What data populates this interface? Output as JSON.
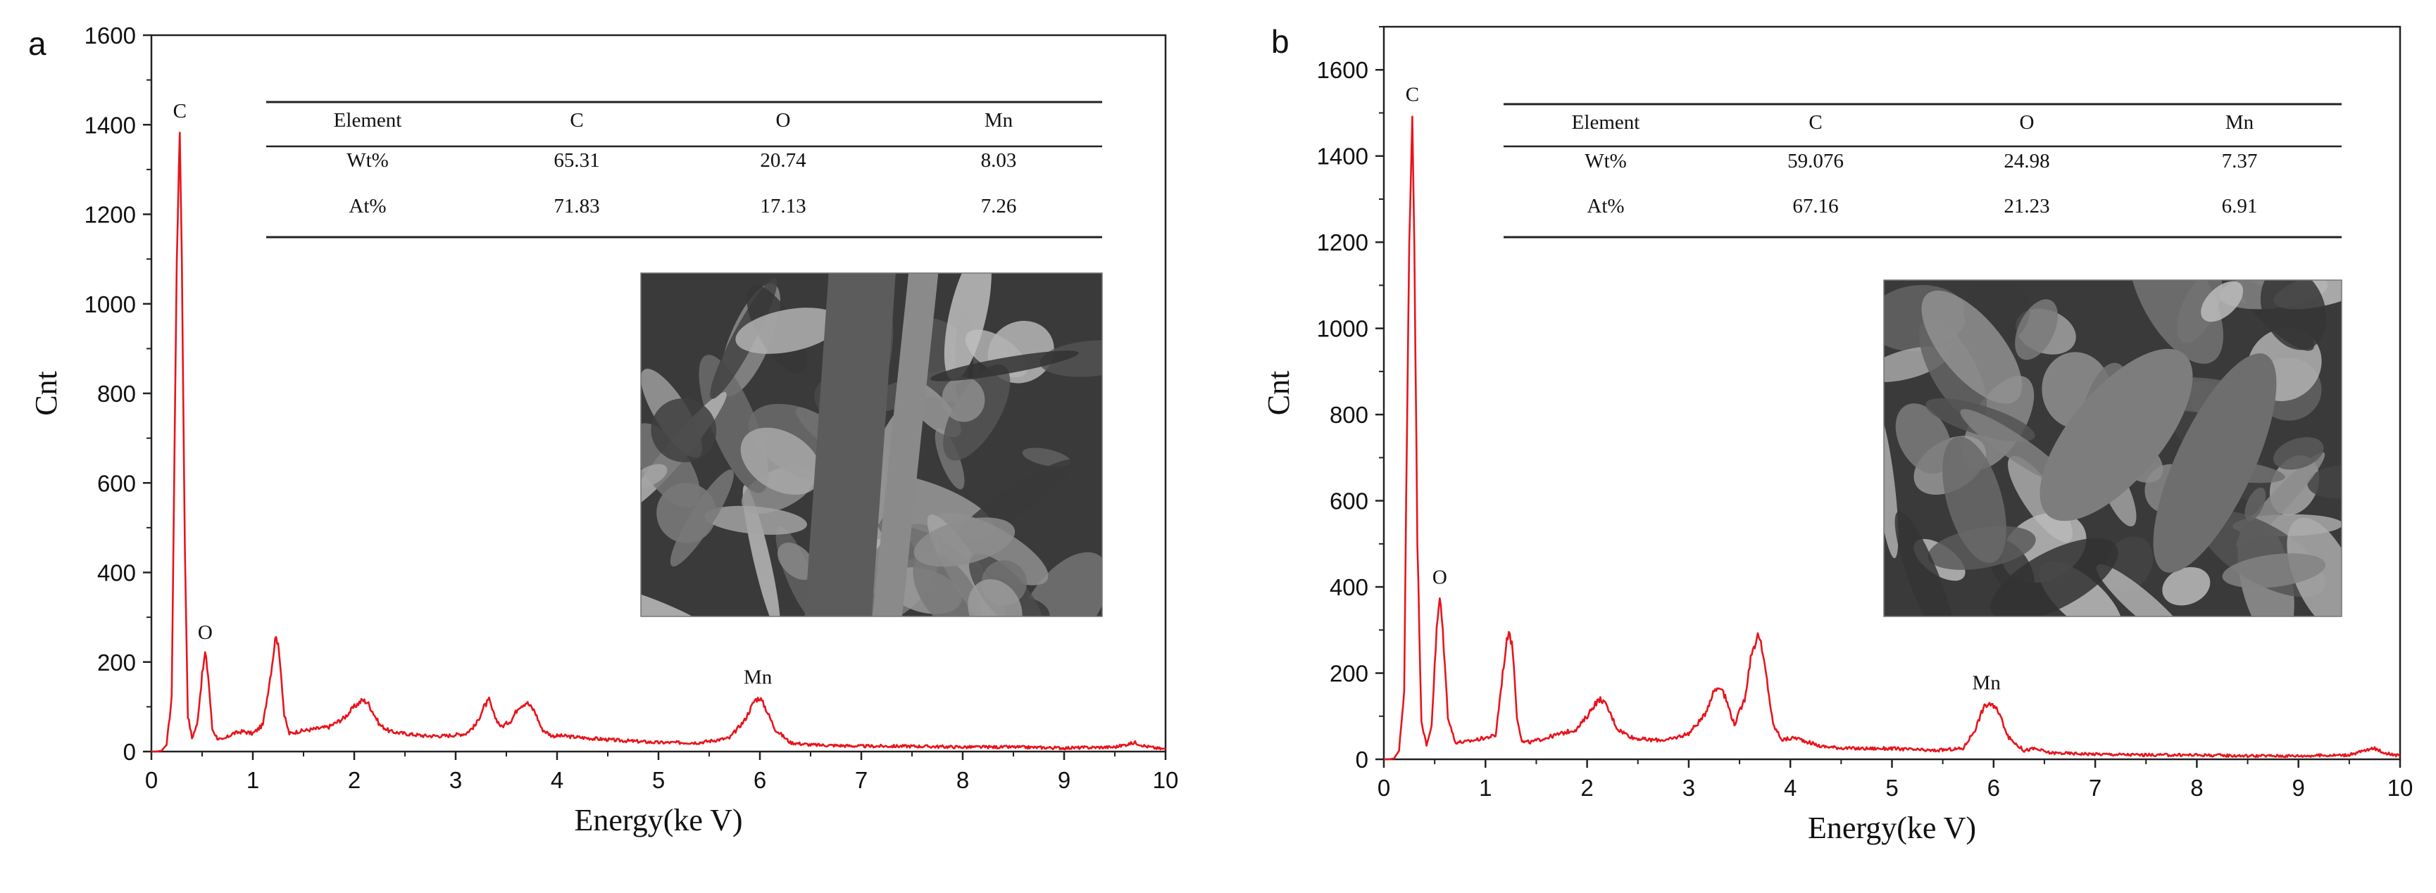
{
  "chart_data": [
    {
      "panel": "a",
      "type": "line",
      "xlabel": "Energy(ke V)",
      "ylabel": "Cnt",
      "xlim": [
        0,
        10
      ],
      "ylim": [
        0,
        1600
      ],
      "xticks": [
        "0",
        "1",
        "2",
        "3",
        "4",
        "5",
        "6",
        "7",
        "8",
        "9",
        "10"
      ],
      "yticks": [
        "0",
        "200",
        "400",
        "600",
        "800",
        "1000",
        "1200",
        "1400",
        "1600"
      ],
      "line_color": "#e8141c",
      "series": [
        {
          "x": [
            0.0,
            0.05,
            0.1,
            0.15,
            0.2,
            0.22,
            0.25,
            0.28,
            0.3,
            0.33,
            0.36,
            0.4,
            0.45,
            0.5,
            0.53,
            0.56,
            0.6,
            0.65,
            0.7,
            0.8,
            0.9,
            1.0,
            1.1,
            1.18,
            1.23,
            1.27,
            1.31,
            1.36,
            1.45,
            1.6,
            1.75,
            1.9,
            2.0,
            2.08,
            2.13,
            2.18,
            2.25,
            2.35,
            2.5,
            2.7,
            2.9,
            3.1,
            3.2,
            3.28,
            3.33,
            3.38,
            3.45,
            3.55,
            3.62,
            3.7,
            3.78,
            3.85,
            3.95,
            4.05,
            4.3,
            4.6,
            5.0,
            5.4,
            5.7,
            5.85,
            5.95,
            6.0,
            6.05,
            6.15,
            6.3,
            6.5,
            7.0,
            7.5,
            8.0,
            8.5,
            9.0,
            9.5,
            9.6,
            9.7,
            9.8,
            9.9,
            10.0
          ],
          "y": [
            0,
            0,
            2,
            15,
            120,
            520,
            1100,
            1385,
            1100,
            450,
            80,
            30,
            60,
            170,
            220,
            170,
            50,
            30,
            25,
            40,
            45,
            40,
            60,
            180,
            265,
            200,
            80,
            40,
            45,
            50,
            55,
            75,
            100,
            115,
            110,
            90,
            60,
            45,
            40,
            35,
            35,
            40,
            60,
            100,
            115,
            80,
            55,
            70,
            100,
            110,
            90,
            50,
            35,
            35,
            30,
            25,
            20,
            20,
            30,
            70,
            115,
            120,
            100,
            50,
            20,
            15,
            12,
            12,
            10,
            10,
            8,
            10,
            15,
            20,
            12,
            8,
            5
          ]
        }
      ],
      "peak_labels": [
        {
          "text": "C",
          "x": 0.28,
          "y": 1385
        },
        {
          "text": "O",
          "x": 0.53,
          "y": 220
        },
        {
          "text": "Mn",
          "x": 5.98,
          "y": 120
        }
      ],
      "table": {
        "headers": [
          "Element",
          "C",
          "O",
          "Mn"
        ],
        "rows": [
          [
            "Wt%",
            "65.31",
            "20.74",
            "8.03"
          ],
          [
            "At%",
            "71.83",
            "17.13",
            "7.26"
          ]
        ]
      },
      "inset": {
        "kind": "sem-micrograph",
        "tone": "grey"
      }
    },
    {
      "panel": "b",
      "type": "line",
      "xlabel": "Energy(ke V)",
      "ylabel": "Cnt",
      "xlim": [
        0,
        10
      ],
      "ylim": [
        0,
        1700
      ],
      "xticks": [
        "0",
        "1",
        "2",
        "3",
        "4",
        "5",
        "6",
        "7",
        "8",
        "9",
        "10"
      ],
      "yticks": [
        "0",
        "200",
        "400",
        "600",
        "800",
        "1000",
        "1200",
        "1400",
        "1600"
      ],
      "line_color": "#e8141c",
      "series": [
        {
          "x": [
            0.0,
            0.05,
            0.1,
            0.15,
            0.2,
            0.22,
            0.25,
            0.28,
            0.3,
            0.33,
            0.37,
            0.42,
            0.47,
            0.52,
            0.55,
            0.58,
            0.63,
            0.7,
            0.8,
            0.9,
            1.0,
            1.1,
            1.18,
            1.23,
            1.27,
            1.31,
            1.36,
            1.45,
            1.6,
            1.75,
            1.9,
            2.0,
            2.08,
            2.14,
            2.2,
            2.3,
            2.45,
            2.6,
            2.8,
            3.0,
            3.15,
            3.25,
            3.32,
            3.38,
            3.45,
            3.55,
            3.62,
            3.69,
            3.76,
            3.83,
            3.92,
            4.05,
            4.3,
            4.6,
            5.0,
            5.4,
            5.7,
            5.82,
            5.9,
            5.96,
            6.05,
            6.15,
            6.3,
            6.4,
            6.55,
            7.0,
            7.5,
            8.0,
            8.5,
            9.0,
            9.5,
            9.65,
            9.75,
            9.85,
            10.0
          ],
          "y": [
            0,
            0,
            2,
            20,
            160,
            600,
            1200,
            1495,
            1200,
            500,
            90,
            30,
            80,
            300,
            375,
            300,
            100,
            40,
            40,
            45,
            50,
            55,
            220,
            305,
            250,
            100,
            40,
            40,
            50,
            60,
            70,
            100,
            130,
            140,
            120,
            70,
            50,
            45,
            45,
            60,
            100,
            160,
            170,
            130,
            80,
            140,
            250,
            290,
            200,
            80,
            45,
            50,
            30,
            25,
            25,
            20,
            25,
            70,
            120,
            130,
            110,
            50,
            20,
            25,
            15,
            12,
            10,
            10,
            8,
            8,
            10,
            20,
            25,
            15,
            8
          ]
        }
      ],
      "peak_labels": [
        {
          "text": "C",
          "x": 0.28,
          "y": 1495
        },
        {
          "text": "O",
          "x": 0.55,
          "y": 375
        },
        {
          "text": "Mn",
          "x": 5.93,
          "y": 130
        }
      ],
      "table": {
        "headers": [
          "Element",
          "C",
          "O",
          "Mn"
        ],
        "rows": [
          [
            "Wt%",
            "59.076",
            "24.98",
            "7.37"
          ],
          [
            "At%",
            "67.16",
            "21.23",
            "6.91"
          ]
        ]
      },
      "inset": {
        "kind": "sem-micrograph",
        "tone": "grey"
      }
    }
  ]
}
